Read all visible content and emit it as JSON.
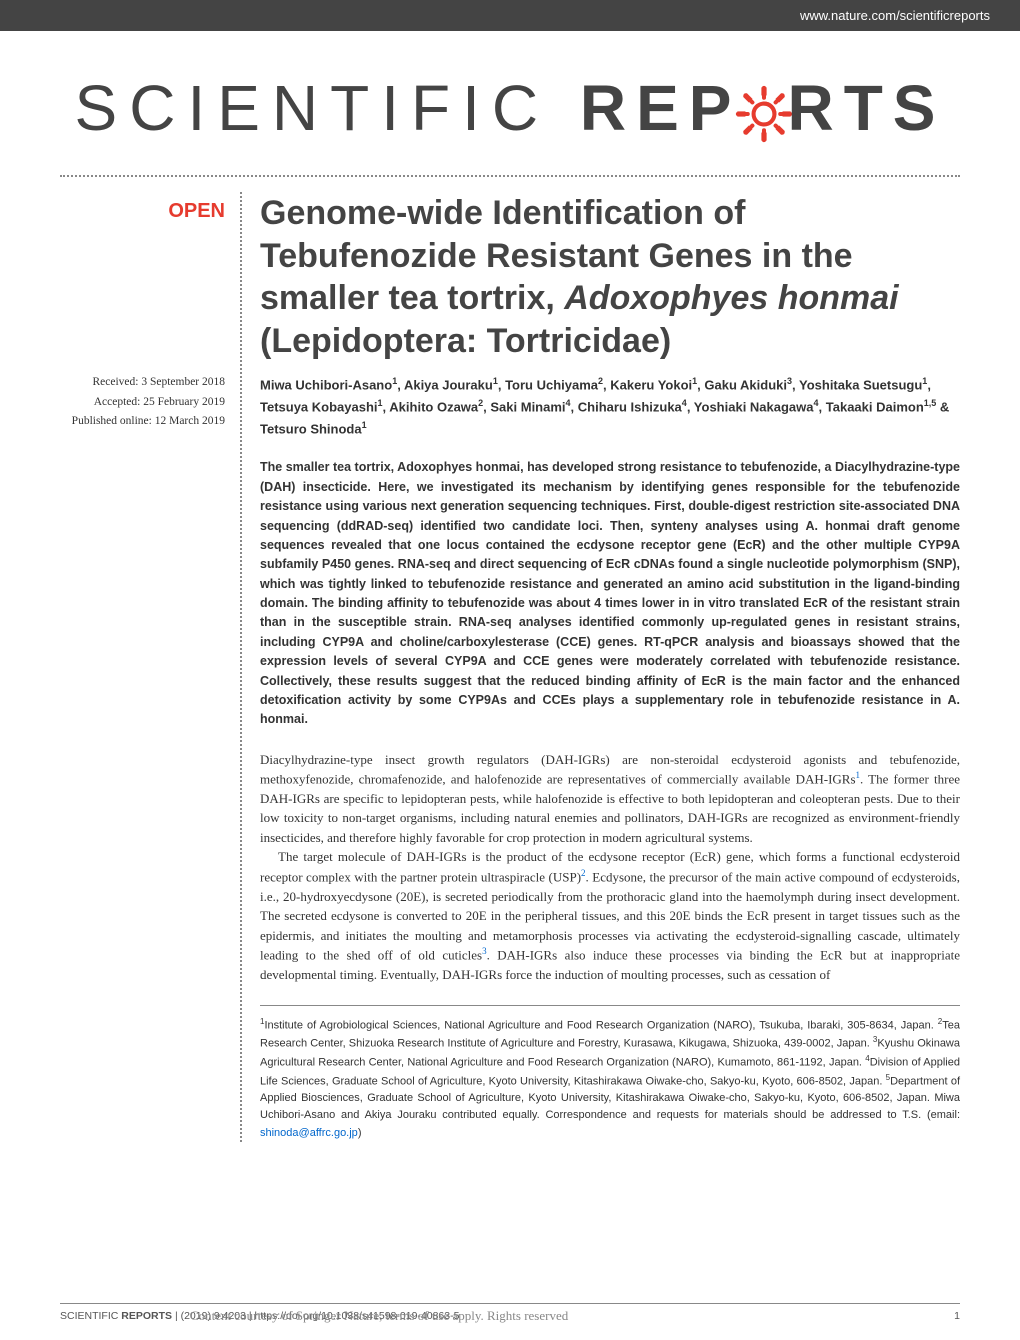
{
  "header": {
    "url": "www.nature.com/scientificreports"
  },
  "logo": {
    "thin": "SCIENTIFIC ",
    "bold_pre": "REP",
    "bold_post": "RTS",
    "gear_color": "#e63b2e"
  },
  "badge": {
    "open": "OPEN"
  },
  "dates": {
    "received": "Received: 3 September 2018",
    "accepted": "Accepted: 25 February 2019",
    "published": "Published online: 12 March 2019"
  },
  "title": {
    "line1": "Genome-wide Identification of Tebufenozide Resistant Genes in the smaller tea tortrix, ",
    "italic1": "Adoxophyes honmai",
    "line2": " (Lepidoptera: Tortricidae)"
  },
  "authors_html": "Miwa Uchibori-Asano<sup>1</sup>, Akiya Jouraku<sup>1</sup>, Toru Uchiyama<sup>2</sup>, Kakeru Yokoi<sup>1</sup>, Gaku Akiduki<sup>3</sup>, Yoshitaka Suetsugu<sup>1</sup>, Tetsuya Kobayashi<sup>1</sup>, Akihito Ozawa<sup>2</sup>, Saki Minami<sup>4</sup>, Chiharu Ishizuka<sup>4</sup>, Yoshiaki Nakagawa<sup>4</sup>, Takaaki Daimon<sup>1,5</sup> & Tetsuro Shinoda<sup>1</sup>",
  "abstract": "The smaller tea tortrix, Adoxophyes honmai, has developed strong resistance to tebufenozide, a Diacylhydrazine-type (DAH) insecticide. Here, we investigated its mechanism by identifying genes responsible for the tebufenozide resistance using various next generation sequencing techniques. First, double-digest restriction site-associated DNA sequencing (ddRAD-seq) identified two candidate loci. Then, synteny analyses using A. honmai draft genome sequences revealed that one locus contained the ecdysone receptor gene (EcR) and the other multiple CYP9A subfamily P450 genes. RNA-seq and direct sequencing of EcR cDNAs found a single nucleotide polymorphism (SNP), which was tightly linked to tebufenozide resistance and generated an amino acid substitution in the ligand-binding domain. The binding affinity to tebufenozide was about 4 times lower in in vitro translated EcR of the resistant strain than in the susceptible strain. RNA-seq analyses identified commonly up-regulated genes in resistant strains, including CYP9A and choline/carboxylesterase (CCE) genes. RT-qPCR analysis and bioassays showed that the expression levels of several CYP9A and CCE genes were moderately correlated with tebufenozide resistance. Collectively, these results suggest that the reduced binding affinity of EcR is the main factor and the enhanced detoxification activity by some CYP9As and CCEs plays a supplementary role in tebufenozide resistance in A. honmai.",
  "body_p1": "Diacylhydrazine-type insect growth regulators (DAH-IGRs) are non-steroidal ecdysteroid agonists and tebufenozide, methoxyfenozide, chromafenozide, and halofenozide are representatives of commercially available DAH-IGRs",
  "body_p1_ref": "1",
  "body_p1b": ". The former three DAH-IGRs are specific to lepidopteran pests, while halofenozide is effective to both lepidopteran and coleopteran pests. Due to their low toxicity to non-target organisms, including natural enemies and pollinators, DAH-IGRs are recognized as environment-friendly insecticides, and therefore highly favorable for crop protection in modern agricultural systems.",
  "body_p2": "The target molecule of DAH-IGRs is the product of the ecdysone receptor (EcR) gene, which forms a functional ecdysteroid receptor complex with the partner protein ultraspiracle (USP)",
  "body_p2_ref": "2",
  "body_p2b": ". Ecdysone, the precursor of the main active compound of ecdysteroids, i.e., 20-hydroxyecdysone (20E), is secreted periodically from the prothoracic gland into the haemolymph during insect development. The secreted ecdysone is converted to 20E in the peripheral tissues, and this 20E binds the EcR present in target tissues such as the epidermis, and initiates the moulting and metamorphosis processes via activating the ecdysteroid-signalling cascade, ultimately leading to the shed off of old cuticles",
  "body_p2_ref2": "3",
  "body_p2c": ". DAH-IGRs also induce these processes via binding the EcR but at inappropriate developmental timing. Eventually, DAH-IGRs force the induction of moulting processes, such as cessation of",
  "affiliations_html": "<sup>1</sup>Institute of Agrobiological Sciences, National Agriculture and Food Research Organization (NARO), Tsukuba, Ibaraki, 305-8634, Japan. <sup>2</sup>Tea Research Center, Shizuoka Research Institute of Agriculture and Forestry, Kurasawa, Kikugawa, Shizuoka, 439-0002, Japan. <sup>3</sup>Kyushu Okinawa Agricultural Research Center, National Agriculture and Food Research Organization (NARO), Kumamoto, 861-1192, Japan. <sup>4</sup>Division of Applied Life Sciences, Graduate School of Agriculture, Kyoto University, Kitashirakawa Oiwake-cho, Sakyo-ku, Kyoto, 606-8502, Japan. <sup>5</sup>Department of Applied Biosciences, Graduate School of Agriculture, Kyoto University, Kitashirakawa Oiwake-cho, Sakyo-ku, Kyoto, 606-8502, Japan. Miwa Uchibori-Asano and Akiya Jouraku contributed equally. Correspondence and requests for materials should be addressed to T.S. (email: <span class=\"email\">shinoda@affrc.go.jp</span>)",
  "footer": {
    "brand_thin": "SCIENTIFIC ",
    "brand_bold": "REPORTS",
    "citation": " |          (2019) 9:4203  | https://doi.org/10.1038/s41598-019-40863-5",
    "page": "1",
    "watermark": "Content courtesy of Springer Nature, terms of use apply. Rights reserved"
  },
  "colors": {
    "accent": "#e63b2e",
    "text": "#333333",
    "header_bg": "#444444",
    "link": "#0066cc"
  }
}
